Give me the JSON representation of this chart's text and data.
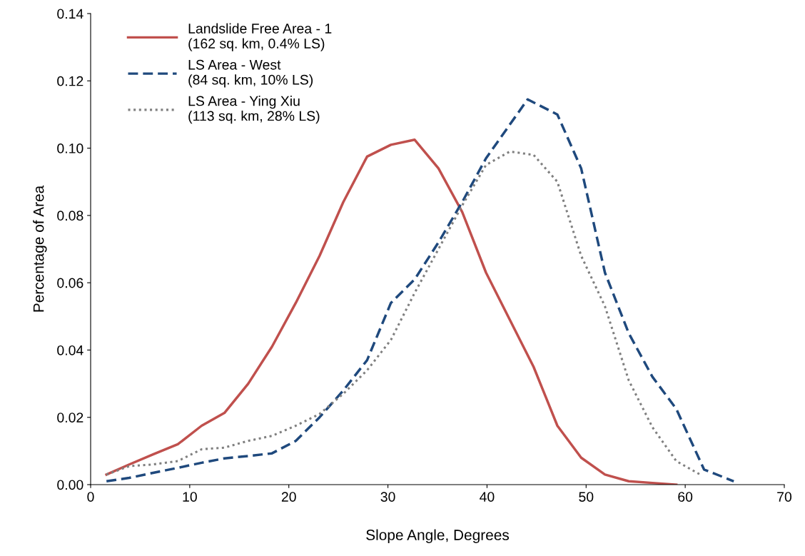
{
  "chart_data": {
    "type": "line",
    "xlabel": "Slope Angle, Degrees",
    "ylabel": "Percentage of Area",
    "xlim": [
      0,
      70
    ],
    "xticks": [
      0,
      10,
      20,
      30,
      40,
      50,
      60,
      70
    ],
    "ylim": [
      0,
      0.14
    ],
    "yticks": [
      {
        "value": 0,
        "label": "0.00"
      },
      {
        "value": 0.02,
        "label": "0.02"
      },
      {
        "value": 0.04,
        "label": "0.04"
      },
      {
        "value": 0.06,
        "label": "0.06"
      },
      {
        "value": 0.08,
        "label": "0.08"
      },
      {
        "value": 0.1,
        "label": "0.10"
      },
      {
        "value": 0.12,
        "label": "0.12"
      },
      {
        "value": 0.14,
        "label": "0.14"
      }
    ],
    "grid": false,
    "legend": "top left",
    "marker": "none",
    "series": [
      {
        "name": "Landslide Free Area - 1\n(162 sq. km, 0.4% LS)",
        "color": "#c0504d",
        "line_style": "solid",
        "x": [
          1.6,
          3.9,
          6.3,
          8.8,
          11.2,
          13.5,
          15.9,
          18.3,
          20.7,
          23.1,
          25.5,
          27.9,
          30.3,
          32.7,
          35.1,
          37.5,
          39.9,
          42.3,
          44.7,
          47.1,
          49.5,
          51.9,
          54.3,
          56.7,
          59.1
        ],
        "values": [
          0.003,
          0.006,
          0.009,
          0.012,
          0.0175,
          0.0213,
          0.03,
          0.041,
          0.054,
          0.068,
          0.084,
          0.0975,
          0.101,
          0.1025,
          0.094,
          0.081,
          0.063,
          0.049,
          0.035,
          0.0175,
          0.008,
          0.003,
          0.001,
          0.0005,
          0.0
        ]
      },
      {
        "name": "LS Area - West\n(84 sq. km, 10% LS)",
        "color": "#1f497d",
        "line_style": "dashed",
        "x": [
          1.6,
          3.9,
          6.3,
          8.8,
          11.2,
          13.5,
          15.9,
          18.3,
          20.7,
          23.1,
          25.5,
          27.9,
          30.3,
          32.7,
          35.1,
          37.5,
          39.9,
          42.3,
          44.1,
          47.1,
          49.5,
          51.9,
          54.3,
          56.7,
          59.1,
          61.9,
          64.9
        ],
        "values": [
          0.001,
          0.002,
          0.0035,
          0.005,
          0.0065,
          0.0078,
          0.0085,
          0.0093,
          0.013,
          0.02,
          0.028,
          0.037,
          0.054,
          0.061,
          0.072,
          0.084,
          0.097,
          0.107,
          0.1145,
          0.11,
          0.094,
          0.063,
          0.045,
          0.032,
          0.0225,
          0.0045,
          0.001
        ]
      },
      {
        "name": "LS Area - Ying Xiu\n(113 sq. km, 28% LS)",
        "color": "#808080",
        "line_style": "dotted",
        "x": [
          1.6,
          3.9,
          6.3,
          8.8,
          11.2,
          13.5,
          15.9,
          18.3,
          20.7,
          23.1,
          25.5,
          27.9,
          30.3,
          32.7,
          35.1,
          37.5,
          39.9,
          42.3,
          44.7,
          47.1,
          49.5,
          51.9,
          54.3,
          56.7,
          59.1,
          61.5
        ],
        "values": [
          0.003,
          0.0055,
          0.006,
          0.007,
          0.0105,
          0.011,
          0.013,
          0.0145,
          0.0175,
          0.021,
          0.027,
          0.034,
          0.043,
          0.057,
          0.07,
          0.083,
          0.095,
          0.099,
          0.098,
          0.09,
          0.068,
          0.053,
          0.031,
          0.017,
          0.007,
          0.003
        ]
      }
    ]
  }
}
